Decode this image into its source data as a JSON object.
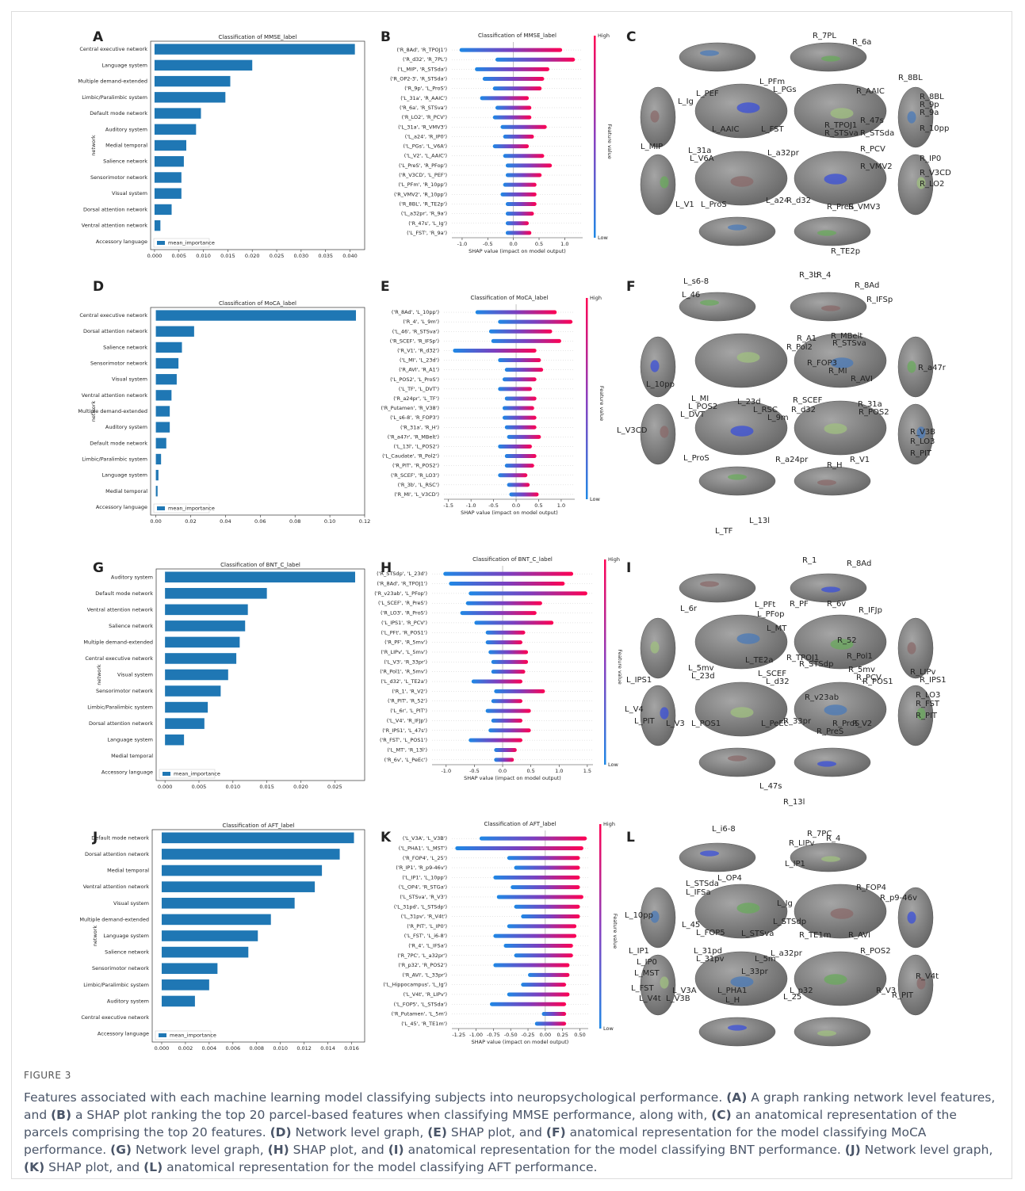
{
  "chart_data": [
    {
      "panel": "A",
      "type": "barh",
      "title": "Classification of MMSE_label",
      "ylabel": "network",
      "legend": "mean_importance",
      "color": "#1f77b4",
      "categories": [
        "Central executive network",
        "Language system",
        "Multiple demand-extended",
        "Limbic/Paralimbic system",
        "Default mode network",
        "Auditory system",
        "Medial temporal",
        "Salience network",
        "Sensorimotor network",
        "Visual system",
        "Dorsal attention network",
        "Ventral attention network",
        "Accessory language"
      ],
      "values": [
        0.041,
        0.02,
        0.0155,
        0.0145,
        0.0095,
        0.0085,
        0.0065,
        0.006,
        0.0055,
        0.0055,
        0.0035,
        0.0012,
        0
      ],
      "xlim": [
        -0.0008,
        0.043
      ],
      "xticks": [
        {
          "value": 0,
          "label": "0.000"
        },
        {
          "value": 0.005,
          "label": "0.005"
        },
        {
          "value": 0.01,
          "label": "0.010"
        },
        {
          "value": 0.015,
          "label": "0.015"
        },
        {
          "value": 0.02,
          "label": "0.020"
        },
        {
          "value": 0.025,
          "label": "0.025"
        },
        {
          "value": 0.03,
          "label": "0.030"
        },
        {
          "value": 0.035,
          "label": "0.035"
        },
        {
          "value": 0.04,
          "label": "0.040"
        }
      ]
    },
    {
      "panel": "B",
      "type": "shap",
      "title": "Classification of MMSE_label",
      "xlabel": "SHAP value (impact on model output)",
      "colorbar_label": "Feature value",
      "colorbar_high": "High",
      "colorbar_low": "Low",
      "categories": [
        "('R_8Ad', 'R_TPOJ1')",
        "('R_d32', 'R_7PL')",
        "('L_MIP', 'R_STSda')",
        "('R_OP2-3', 'R_STSda')",
        "('R_9p', 'L_ProS')",
        "('L_31a', 'R_AAIC')",
        "('R_6a', 'R_STSva')",
        "('R_LO2', 'R_PCV')",
        "('L_31a', 'R_VMV3')",
        "('L_a24', 'R_IP0')",
        "('L_PGs', 'L_V6A')",
        "('L_V2', 'L_AAIC')",
        "('L_PreS', 'R_PFop')",
        "('R_V3CD', 'L_PEF')",
        "('L_PFm', 'R_10pp')",
        "('R_VMV2', 'R_10pp')",
        "('R_8BL', 'R_TE2p')",
        "('L_a32pr', 'R_9a')",
        "('R_47s', 'L_Ig')",
        "('L_FST', 'R_9a')"
      ],
      "ranges": [
        [
          -1.05,
          0.95
        ],
        [
          -0.35,
          1.2
        ],
        [
          -0.75,
          0.7
        ],
        [
          -0.6,
          0.6
        ],
        [
          -0.4,
          0.55
        ],
        [
          -0.65,
          0.3
        ],
        [
          -0.35,
          0.35
        ],
        [
          -0.4,
          0.35
        ],
        [
          -0.25,
          0.65
        ],
        [
          -0.2,
          0.4
        ],
        [
          -0.4,
          0.3
        ],
        [
          -0.2,
          0.6
        ],
        [
          -0.15,
          0.75
        ],
        [
          -0.15,
          0.55
        ],
        [
          -0.2,
          0.45
        ],
        [
          -0.25,
          0.45
        ],
        [
          -0.15,
          0.45
        ],
        [
          -0.15,
          0.4
        ],
        [
          -0.15,
          0.3
        ],
        [
          -0.15,
          0.35
        ]
      ],
      "xlim": [
        -1.2,
        1.35
      ],
      "xticks": [
        {
          "value": -1,
          "label": "-1.0"
        },
        {
          "value": -0.5,
          "label": "-0.5"
        },
        {
          "value": 0,
          "label": "0.0"
        },
        {
          "value": 0.5,
          "label": "0.5"
        },
        {
          "value": 1,
          "label": "1.0"
        }
      ]
    },
    {
      "panel": "D",
      "type": "barh",
      "title": "Classification of MoCA_label",
      "ylabel": "network",
      "legend": "mean_importance",
      "color": "#1f77b4",
      "categories": [
        "Central executive network",
        "Dorsal attention network",
        "Salience network",
        "Sensorimotor network",
        "Visual system",
        "Ventral attention network",
        "Multiple demand-extended",
        "Auditory system",
        "Default mode network",
        "Limbic/Paralimbic system",
        "Language system",
        "Medial temporal",
        "Accessory language"
      ],
      "values": [
        0.115,
        0.022,
        0.015,
        0.013,
        0.012,
        0.009,
        0.008,
        0.008,
        0.006,
        0.003,
        0.0015,
        0.001,
        0
      ],
      "xlim": [
        -0.003,
        0.12
      ],
      "xticks": [
        {
          "value": 0,
          "label": "0.00"
        },
        {
          "value": 0.02,
          "label": "0.02"
        },
        {
          "value": 0.04,
          "label": "0.04"
        },
        {
          "value": 0.06,
          "label": "0.06"
        },
        {
          "value": 0.08,
          "label": "0.08"
        },
        {
          "value": 0.1,
          "label": "0.10"
        },
        {
          "value": 0.12,
          "label": "0.12"
        }
      ]
    },
    {
      "panel": "E",
      "type": "shap",
      "title": "Classification of MoCA_label",
      "xlabel": "SHAP value (impact on model output)",
      "colorbar_label": "Feature value",
      "colorbar_high": "High",
      "colorbar_low": "Low",
      "categories": [
        "('R_8Ad', 'L_10pp')",
        "('R_4', 'L_9m')",
        "('L_46', 'R_STSva')",
        "('R_SCEF', 'R_IFSp')",
        "('R_V1', 'R_d32')",
        "('L_MI', 'L_23d')",
        "('R_AVI', 'R_A1')",
        "('L_POS2', 'L_ProS')",
        "('L_TF', 'L_DVT')",
        "('R_a24pr', 'L_TF')",
        "('R_Putamen', 'R_V38')",
        "('L_s6-8', 'R_FOP3')",
        "('R_31a', 'R_H')",
        "('R_a47r', 'R_MBelt')",
        "('L_13l', 'L_POS2')",
        "('L_Caudate', 'R_Pol2')",
        "('R_PIT', 'R_POS2')",
        "('R_SCEF', 'R_LO3')",
        "('R_3b', 'L_RSC')",
        "('R_MI', 'L_V3CD')"
      ],
      "ranges": [
        [
          -0.9,
          0.9
        ],
        [
          -0.4,
          1.25
        ],
        [
          -0.6,
          0.8
        ],
        [
          -0.55,
          1.0
        ],
        [
          -1.4,
          0.45
        ],
        [
          -0.4,
          0.55
        ],
        [
          -0.25,
          0.6
        ],
        [
          -0.3,
          0.45
        ],
        [
          -0.4,
          0.35
        ],
        [
          -0.25,
          0.45
        ],
        [
          -0.3,
          0.4
        ],
        [
          -0.3,
          0.45
        ],
        [
          -0.25,
          0.45
        ],
        [
          -0.2,
          0.55
        ],
        [
          -0.4,
          0.35
        ],
        [
          -0.25,
          0.45
        ],
        [
          -0.25,
          0.4
        ],
        [
          -0.4,
          0.25
        ],
        [
          -0.2,
          0.3
        ],
        [
          -0.15,
          0.5
        ]
      ],
      "xlim": [
        -1.6,
        1.3
      ],
      "xticks": [
        {
          "value": -1.5,
          "label": "-1.5"
        },
        {
          "value": -1,
          "label": "-1.0"
        },
        {
          "value": -0.5,
          "label": "-0.5"
        },
        {
          "value": 0,
          "label": "0.0"
        },
        {
          "value": 0.5,
          "label": "0.5"
        },
        {
          "value": 1,
          "label": "1.0"
        }
      ]
    },
    {
      "panel": "G",
      "type": "barh",
      "title": "Classification of BNT_C_label",
      "ylabel": "network",
      "legend": "mean_importance",
      "color": "#1f77b4",
      "categories": [
        "Auditory system",
        "Default mode network",
        "Ventral attention network",
        "Salience network",
        "Multiple demand-extended",
        "Central executive network",
        "Visual system",
        "Sensorimotor network",
        "Limbic/Paralimbic system",
        "Dorsal attention network",
        "Language system",
        "Medial temporal",
        "Accessory language"
      ],
      "values": [
        0.028,
        0.015,
        0.0122,
        0.0118,
        0.011,
        0.0105,
        0.0093,
        0.0082,
        0.0063,
        0.0058,
        0.0028,
        0,
        0
      ],
      "xlim": [
        -0.0013,
        0.0294
      ],
      "xticks": [
        {
          "value": 0,
          "label": "0.000"
        },
        {
          "value": 0.005,
          "label": "0.005"
        },
        {
          "value": 0.01,
          "label": "0.010"
        },
        {
          "value": 0.015,
          "label": "0.015"
        },
        {
          "value": 0.02,
          "label": "0.020"
        },
        {
          "value": 0.025,
          "label": "0.025"
        }
      ]
    },
    {
      "panel": "H",
      "type": "shap",
      "title": "Classification of BNT_C_label",
      "xlabel": "SHAP value (impact on model output)",
      "colorbar_label": "Feature value",
      "colorbar_high": "High",
      "colorbar_low": "Low",
      "categories": [
        "('R_STSdp', 'L_23d')",
        "('R_8Ad', 'R_TPOJ1')",
        "('R_v23ab', 'L_PFop')",
        "('L_SCEF', 'R_PreS')",
        "('R_LO3', 'R_ProS')",
        "('L_IPS1', 'R_PCV')",
        "('L_PFt', 'R_POS1')",
        "('R_PF', 'R_5mv')",
        "('R_LIPv', 'L_5mv')",
        "('L_V3', 'R_33pr')",
        "('R_Pol1', 'R_5mv')",
        "('L_d32', 'L_TE2a')",
        "('R_1', 'R_V2')",
        "('R_PIT', 'R_52')",
        "('L_6r', 'L_PIT')",
        "('L_V4', 'R_IFJp')",
        "('R_IPS1', 'L_47s')",
        "('R_FST', 'L_POS1')",
        "('L_MT', 'R_13l')",
        "('R_6v', 'L_PeEc')"
      ],
      "ranges": [
        [
          -1.05,
          1.25
        ],
        [
          -0.95,
          1.1
        ],
        [
          -0.6,
          1.5
        ],
        [
          -0.65,
          0.7
        ],
        [
          -0.75,
          0.6
        ],
        [
          -0.5,
          0.9
        ],
        [
          -0.3,
          0.4
        ],
        [
          -0.3,
          0.35
        ],
        [
          -0.25,
          0.45
        ],
        [
          -0.2,
          0.45
        ],
        [
          -0.2,
          0.4
        ],
        [
          -0.55,
          0.35
        ],
        [
          -0.15,
          0.75
        ],
        [
          -0.2,
          0.35
        ],
        [
          -0.3,
          0.5
        ],
        [
          -0.2,
          0.35
        ],
        [
          -0.25,
          0.5
        ],
        [
          -0.6,
          0.35
        ],
        [
          -0.15,
          0.25
        ],
        [
          -0.15,
          0.2
        ]
      ],
      "xlim": [
        -1.25,
        1.6
      ],
      "xticks": [
        {
          "value": -1,
          "label": "-1.0"
        },
        {
          "value": -0.5,
          "label": "-0.5"
        },
        {
          "value": 0,
          "label": "0.0"
        },
        {
          "value": 0.5,
          "label": "0.5"
        },
        {
          "value": 1,
          "label": "1.0"
        },
        {
          "value": 1.5,
          "label": "1.5"
        }
      ]
    },
    {
      "panel": "J",
      "type": "barh",
      "title": "Classification of AFT_label",
      "ylabel": "network",
      "legend": "mean_importance",
      "color": "#1f77b4",
      "categories": [
        "Default mode network",
        "Dorsal attention network",
        "Medial temporal",
        "Ventral attention network",
        "Visual system",
        "Multiple demand-extended",
        "Language system",
        "Salience network",
        "Sensorimotor network",
        "Limbic/Paralimbic system",
        "Auditory system",
        "Central executive network",
        "Accessory language"
      ],
      "values": [
        0.0162,
        0.015,
        0.0135,
        0.0129,
        0.0112,
        0.0092,
        0.0081,
        0.0073,
        0.0047,
        0.004,
        0.0028,
        0,
        0
      ],
      "xlim": [
        -0.0008,
        0.0171
      ],
      "xticks": [
        {
          "value": 0,
          "label": "0.000"
        },
        {
          "value": 0.002,
          "label": "0.002"
        },
        {
          "value": 0.004,
          "label": "0.004"
        },
        {
          "value": 0.006,
          "label": "0.006"
        },
        {
          "value": 0.008,
          "label": "0.008"
        },
        {
          "value": 0.01,
          "label": "0.010"
        },
        {
          "value": 0.012,
          "label": "0.012"
        },
        {
          "value": 0.014,
          "label": "0.014"
        },
        {
          "value": 0.016,
          "label": "0.016"
        }
      ]
    },
    {
      "panel": "K",
      "type": "shap",
      "title": "Classification of AFT_label",
      "xlabel": "SHAP value (impact on model output)",
      "colorbar_label": "Feature value",
      "colorbar_high": "High",
      "colorbar_low": "Low",
      "categories": [
        "('L_V3A', 'L_V3B')",
        "('L_PHA1', 'L_MST')",
        "('R_FOP4', 'L_25')",
        "('R_IP1', 'R_p9-46v')",
        "('L_IP1', 'L_10pp')",
        "('L_OP4', 'R_STGa')",
        "('L_STSva', 'R_V3')",
        "('L_31pd', 'L_STSdp')",
        "('L_31pv', 'R_V4t')",
        "('R_PIT', 'L_IP0')",
        "('L_FST', 'L_i6-8')",
        "('R_4', 'L_IFSa')",
        "('R_7PC', 'L_a32pr')",
        "('R_p32', 'R_POS2')",
        "('R_AVI', 'L_33pr')",
        "('L_Hippocampus', 'L_Ig')",
        "('L_V4t', 'R_LIPv')",
        "('L_FOP5', 'L_STSda')",
        "('R_Putamen', 'L_5m')",
        "('L_45', 'R_TE1m')"
      ],
      "ranges": [
        [
          -0.95,
          0.6
        ],
        [
          -1.3,
          0.55
        ],
        [
          -0.55,
          0.5
        ],
        [
          -0.45,
          0.5
        ],
        [
          -0.75,
          0.5
        ],
        [
          -0.5,
          0.5
        ],
        [
          -0.7,
          0.55
        ],
        [
          -0.45,
          0.5
        ],
        [
          -0.35,
          0.5
        ],
        [
          -0.55,
          0.45
        ],
        [
          -0.75,
          0.45
        ],
        [
          -0.6,
          0.4
        ],
        [
          -0.45,
          0.4
        ],
        [
          -0.75,
          0.35
        ],
        [
          -0.25,
          0.35
        ],
        [
          -0.35,
          0.3
        ],
        [
          -0.55,
          0.35
        ],
        [
          -0.8,
          0.3
        ],
        [
          -0.05,
          0.3
        ],
        [
          -0.15,
          0.3
        ]
      ],
      "xlim": [
        -1.35,
        0.62
      ],
      "xticks": [
        {
          "value": -1.25,
          "label": "-1.25"
        },
        {
          "value": -1,
          "label": "-1.00"
        },
        {
          "value": -0.75,
          "label": "-0.75"
        },
        {
          "value": -0.5,
          "label": "-0.50"
        },
        {
          "value": -0.25,
          "label": "-0.25"
        },
        {
          "value": 0,
          "label": "0.00"
        },
        {
          "value": 0.25,
          "label": "0.25"
        },
        {
          "value": 0.5,
          "label": "0.50"
        }
      ]
    }
  ],
  "brain_panels": [
    {
      "panel": "C",
      "labels": [
        "R_7PL",
        "R_6a",
        "R_8BL",
        "R_8BL",
        "R_9p",
        "R_9a",
        "R_10pp",
        "L_PEF",
        "L_PFm",
        "L_Ig",
        "L_PGs",
        "R_AAIC",
        "R_47s",
        "L_AAIC",
        "L_FST",
        "R_TPOJ1",
        "R_STSva",
        "R_STSda",
        "L_MIP",
        "L_31a",
        "L_a32pr",
        "R_PCV",
        "R_IP0",
        "L_V6A",
        "R_VMV2",
        "R_V3CD",
        "R_LO2",
        "L_V1",
        "L_ProS",
        "L_a24",
        "R_d32",
        "R_PreS",
        "R_VMV3",
        "R_TE2p"
      ]
    },
    {
      "panel": "F",
      "labels": [
        "L_s6-8",
        "R_3b",
        "R_4",
        "R_8Ad",
        "L_46",
        "R_IFSp",
        "R_MBelt",
        "R_A1",
        "R_STSva",
        "R_Pol2",
        "R_FOP3",
        "R_MI",
        "R_AVI",
        "R_a47r",
        "L_10pp",
        "L_MI",
        "L_23d",
        "L_POS2",
        "R_SCEF",
        "R_31a",
        "L_RSC",
        "R_d32",
        "R_POS2",
        "L_DVT",
        "L_9m",
        "L_V3CD",
        "R_V3B",
        "R_LO3",
        "R_PIT",
        "L_ProS",
        "R_a24pr",
        "R_H",
        "R_V1",
        "L_13l",
        "L_TF"
      ]
    },
    {
      "panel": "I",
      "labels": [
        "R_1",
        "R_8Ad",
        "L_6r",
        "L_PFt",
        "L_PFop",
        "R_PF",
        "R_6v",
        "R_IFJp",
        "L_MT",
        "R_52",
        "L_TE2a",
        "R_TPOJ1",
        "R_STSdp",
        "R_Pol1",
        "L_5mv",
        "L_SCEF",
        "R_5mv",
        "R_LIPv",
        "L_23d",
        "L_d32",
        "R_PCV",
        "R_IPS1",
        "L_IPS1",
        "R_POS1",
        "R_v23ab",
        "R_LO3",
        "R_FST",
        "L_V4",
        "R_PIT",
        "L_PIT",
        "L_V3",
        "L_POS1",
        "L_PeEc",
        "R_33pr",
        "R_ProS",
        "R_V2",
        "R_PreS",
        "L_47s",
        "R_13l"
      ]
    },
    {
      "panel": "L",
      "labels": [
        "R_7PC",
        "R_LIPv",
        "R_4",
        "L_i6-8",
        "L_IP1",
        "L_OP4",
        "R_FOP4",
        "L_STSda",
        "L_IFSa",
        "L_Ig",
        "R_p9-46v",
        "L_10pp",
        "L_STSdp",
        "L_45",
        "L_FOP5",
        "L_STSva",
        "R_TE1m",
        "R_AVI",
        "L_IP1",
        "L_31pd",
        "R_POS2",
        "L_31pv",
        "L_5m",
        "L_a32pr",
        "L_IP0",
        "L_33pr",
        "L_MST",
        "R_V4t",
        "L_FST",
        "L_V4t",
        "L_V3A",
        "R_V3",
        "R_PIT",
        "L_p32",
        "L_PHA1",
        "L_25",
        "L_V3B",
        "L_H"
      ]
    }
  ],
  "caption": {
    "label": "FIGURE 3",
    "parts": [
      "Features associated with each machine learning model classifying subjects into neuropsychological performance. ",
      "(A)",
      " A graph ranking network level features, and ",
      "(B)",
      " a SHAP plot ranking the top 20 parcel-based features when classifying MMSE performance, along with, ",
      "(C)",
      " an anatomical representation of the parcels comprising the top 20 features. ",
      "(D)",
      " Network level graph, ",
      "(E)",
      " SHAP plot, and ",
      "(F)",
      " anatomical representation for the model classifying MoCA performance. ",
      "(G)",
      " Network level graph, ",
      "(H)",
      " SHAP plot, and ",
      "(I)",
      " anatomical representation for the model classifying BNT performance. ",
      "(J)",
      " Network level graph, ",
      "(K)",
      " SHAP plot, and ",
      "(L)",
      " anatomical representation for the model classifying AFT performance."
    ]
  }
}
